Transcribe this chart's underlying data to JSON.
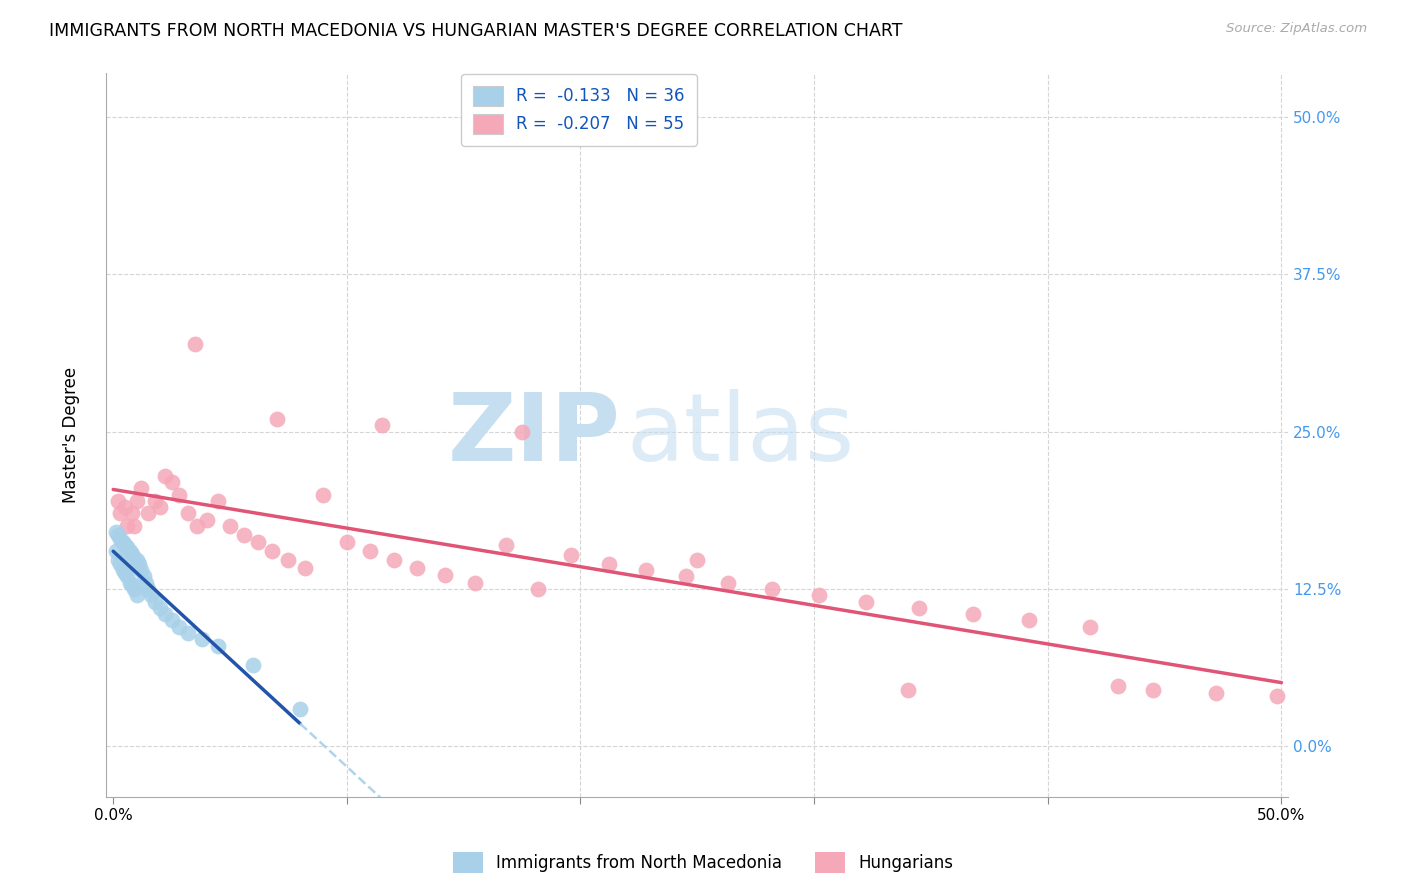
{
  "title": "IMMIGRANTS FROM NORTH MACEDONIA VS HUNGARIAN MASTER'S DEGREE CORRELATION CHART",
  "source": "Source: ZipAtlas.com",
  "ylabel": "Master's Degree",
  "ytick_vals": [
    0.0,
    0.125,
    0.25,
    0.375,
    0.5
  ],
  "ytick_labels": [
    "0.0%",
    "12.5%",
    "25.0%",
    "37.5%",
    "50.0%"
  ],
  "xlim": [
    -0.003,
    0.503
  ],
  "ylim": [
    -0.04,
    0.535
  ],
  "legend_r_blue": "R =  -0.133",
  "legend_n_blue": "N = 36",
  "legend_r_pink": "R =  -0.207",
  "legend_n_pink": "N = 55",
  "blue_color": "#a8d0e8",
  "pink_color": "#f5a8b8",
  "blue_line_color": "#2255aa",
  "pink_line_color": "#e05575",
  "blue_dashed_color": "#a8d0e8",
  "watermark_zip": "ZIP",
  "watermark_atlas": "atlas",
  "blue_x": [
    0.001,
    0.001,
    0.002,
    0.002,
    0.003,
    0.003,
    0.004,
    0.004,
    0.005,
    0.005,
    0.006,
    0.006,
    0.007,
    0.007,
    0.008,
    0.008,
    0.009,
    0.009,
    0.01,
    0.01,
    0.011,
    0.012,
    0.013,
    0.014,
    0.015,
    0.016,
    0.018,
    0.02,
    0.022,
    0.025,
    0.028,
    0.032,
    0.038,
    0.045,
    0.06,
    0.08
  ],
  "blue_y": [
    0.17,
    0.155,
    0.168,
    0.148,
    0.165,
    0.145,
    0.162,
    0.14,
    0.16,
    0.138,
    0.158,
    0.135,
    0.155,
    0.13,
    0.153,
    0.128,
    0.15,
    0.125,
    0.148,
    0.12,
    0.145,
    0.14,
    0.135,
    0.13,
    0.125,
    0.12,
    0.115,
    0.11,
    0.105,
    0.1,
    0.095,
    0.09,
    0.085,
    0.08,
    0.065,
    0.03
  ],
  "pink_x": [
    0.002,
    0.003,
    0.005,
    0.006,
    0.008,
    0.009,
    0.01,
    0.012,
    0.015,
    0.018,
    0.02,
    0.022,
    0.025,
    0.028,
    0.032,
    0.036,
    0.04,
    0.045,
    0.05,
    0.056,
    0.062,
    0.068,
    0.075,
    0.082,
    0.09,
    0.1,
    0.11,
    0.12,
    0.13,
    0.142,
    0.155,
    0.168,
    0.182,
    0.196,
    0.212,
    0.228,
    0.245,
    0.263,
    0.282,
    0.302,
    0.322,
    0.345,
    0.368,
    0.392,
    0.418,
    0.445,
    0.472,
    0.498,
    0.035,
    0.07,
    0.115,
    0.175,
    0.25,
    0.34,
    0.43
  ],
  "pink_y": [
    0.195,
    0.185,
    0.19,
    0.175,
    0.185,
    0.175,
    0.195,
    0.205,
    0.185,
    0.195,
    0.19,
    0.215,
    0.21,
    0.2,
    0.185,
    0.175,
    0.18,
    0.195,
    0.175,
    0.168,
    0.162,
    0.155,
    0.148,
    0.142,
    0.2,
    0.162,
    0.155,
    0.148,
    0.142,
    0.136,
    0.13,
    0.16,
    0.125,
    0.152,
    0.145,
    0.14,
    0.135,
    0.13,
    0.125,
    0.12,
    0.115,
    0.11,
    0.105,
    0.1,
    0.095,
    0.045,
    0.042,
    0.04,
    0.32,
    0.26,
    0.255,
    0.25,
    0.148,
    0.045,
    0.048
  ]
}
